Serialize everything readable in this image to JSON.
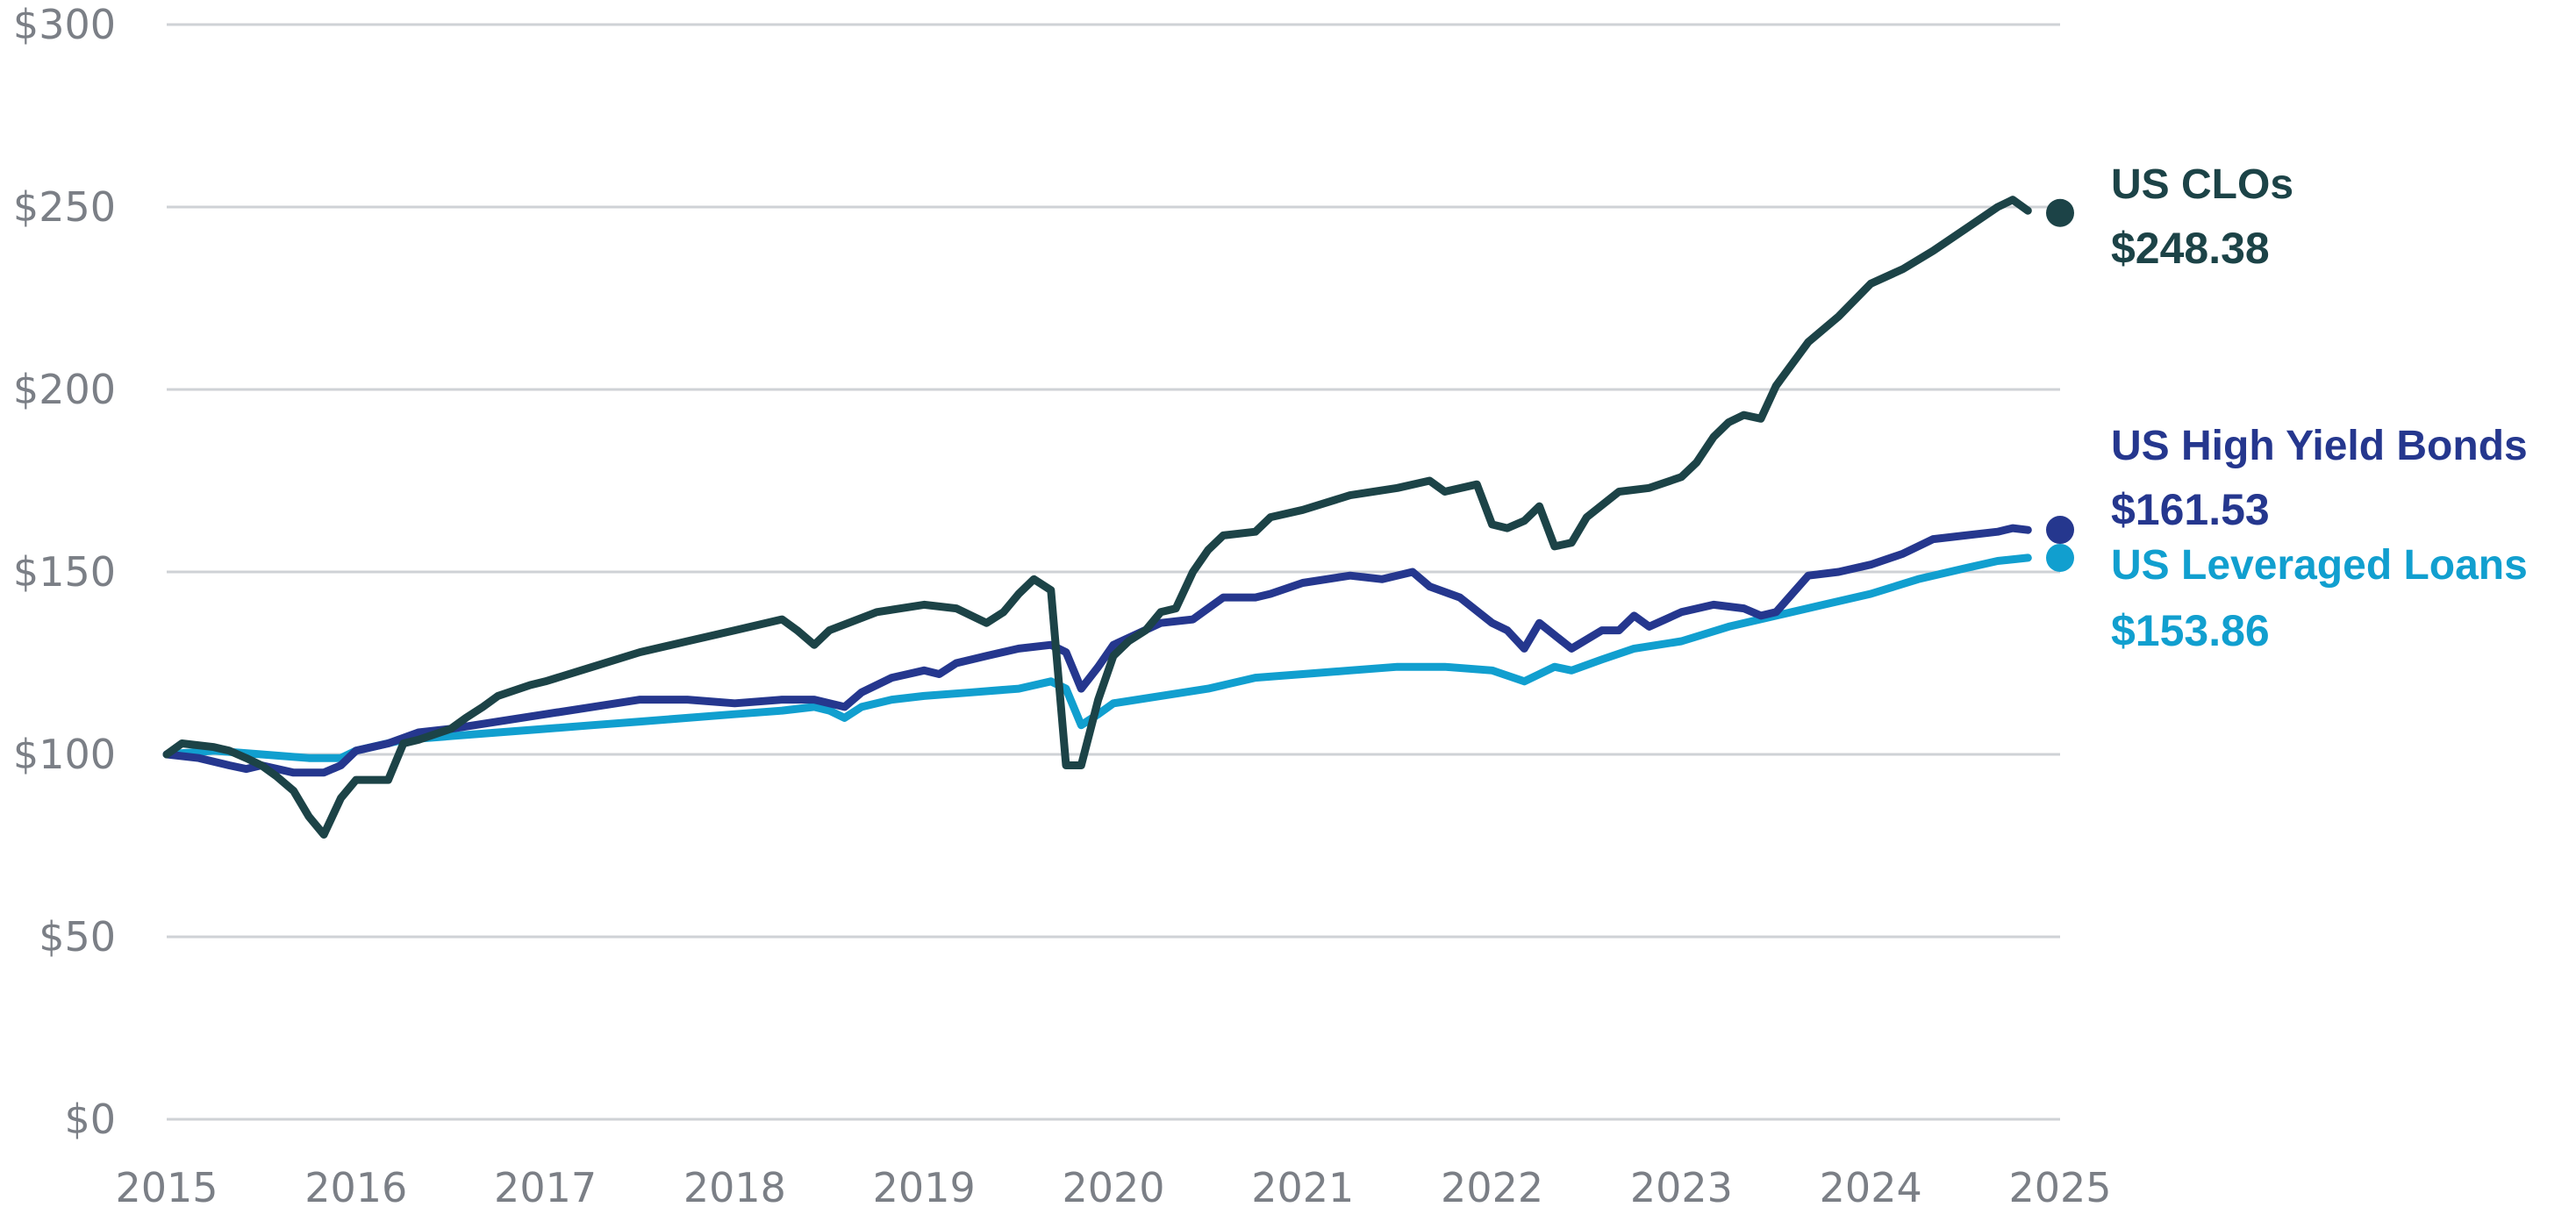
{
  "colors": {
    "clo": "#1c4347",
    "hy": "#25378e",
    "loans": "#119fcf",
    "grid": "#cfd2d6",
    "tick": "#7b7f86"
  },
  "chart_data": {
    "type": "line",
    "xlim": [
      2015,
      2025
    ],
    "ylim": [
      0,
      300
    ],
    "grid": true,
    "x_ticks": [
      "2015",
      "2016",
      "2017",
      "2018",
      "2019",
      "2020",
      "2021",
      "2022",
      "2023",
      "2024",
      "2025"
    ],
    "y_ticks": [
      "$0",
      "$50",
      "$100",
      "$150",
      "$200",
      "$250",
      "$300"
    ],
    "y_tick_values": [
      0,
      50,
      100,
      150,
      200,
      250,
      300
    ],
    "series": [
      {
        "name": "US CLOs",
        "value_label": "$248.38",
        "final_value": 248.38,
        "color_key": "clo",
        "points": [
          [
            2015.0,
            100
          ],
          [
            2015.08,
            103
          ],
          [
            2015.25,
            102
          ],
          [
            2015.33,
            101
          ],
          [
            2015.42,
            99
          ],
          [
            2015.5,
            97
          ],
          [
            2015.58,
            94
          ],
          [
            2015.67,
            90
          ],
          [
            2015.75,
            83
          ],
          [
            2015.83,
            78
          ],
          [
            2015.92,
            88
          ],
          [
            2016.0,
            93
          ],
          [
            2016.08,
            93
          ],
          [
            2016.17,
            93
          ],
          [
            2016.25,
            103
          ],
          [
            2016.33,
            104
          ],
          [
            2016.5,
            107
          ],
          [
            2016.58,
            110
          ],
          [
            2016.67,
            113
          ],
          [
            2016.75,
            116
          ],
          [
            2016.92,
            119
          ],
          [
            2017.0,
            120
          ],
          [
            2017.25,
            124
          ],
          [
            2017.5,
            128
          ],
          [
            2017.75,
            131
          ],
          [
            2018.0,
            134
          ],
          [
            2018.25,
            137
          ],
          [
            2018.33,
            134
          ],
          [
            2018.42,
            130
          ],
          [
            2018.5,
            134
          ],
          [
            2018.75,
            139
          ],
          [
            2019.0,
            141
          ],
          [
            2019.17,
            140
          ],
          [
            2019.33,
            136
          ],
          [
            2019.42,
            139
          ],
          [
            2019.5,
            144
          ],
          [
            2019.58,
            148
          ],
          [
            2019.67,
            145
          ],
          [
            2019.75,
            97
          ],
          [
            2019.83,
            97
          ],
          [
            2019.92,
            115
          ],
          [
            2020.0,
            127
          ],
          [
            2020.08,
            131
          ],
          [
            2020.17,
            134
          ],
          [
            2020.25,
            139
          ],
          [
            2020.33,
            140
          ],
          [
            2020.42,
            150
          ],
          [
            2020.5,
            156
          ],
          [
            2020.58,
            160
          ],
          [
            2020.75,
            161
          ],
          [
            2020.83,
            165
          ],
          [
            2021.0,
            167
          ],
          [
            2021.25,
            171
          ],
          [
            2021.5,
            173
          ],
          [
            2021.67,
            175
          ],
          [
            2021.75,
            172
          ],
          [
            2021.92,
            174
          ],
          [
            2022.0,
            163
          ],
          [
            2022.08,
            162
          ],
          [
            2022.17,
            164
          ],
          [
            2022.25,
            168
          ],
          [
            2022.33,
            157
          ],
          [
            2022.42,
            158
          ],
          [
            2022.5,
            165
          ],
          [
            2022.67,
            172
          ],
          [
            2022.83,
            173
          ],
          [
            2023.0,
            176
          ],
          [
            2023.08,
            180
          ],
          [
            2023.17,
            187
          ],
          [
            2023.25,
            191
          ],
          [
            2023.33,
            193
          ],
          [
            2023.42,
            192
          ],
          [
            2023.5,
            201
          ],
          [
            2023.67,
            213
          ],
          [
            2023.83,
            220
          ],
          [
            2024.0,
            229
          ],
          [
            2024.17,
            233
          ],
          [
            2024.33,
            238
          ],
          [
            2024.5,
            244
          ],
          [
            2024.67,
            250
          ],
          [
            2024.75,
            252
          ],
          [
            2024.83,
            249
          ]
        ]
      },
      {
        "name": "US High Yield Bonds",
        "value_label": "$161.53",
        "final_value": 161.53,
        "color_key": "hy",
        "points": [
          [
            2015.0,
            100
          ],
          [
            2015.17,
            99
          ],
          [
            2015.33,
            97
          ],
          [
            2015.42,
            96
          ],
          [
            2015.5,
            97
          ],
          [
            2015.67,
            95
          ],
          [
            2015.83,
            95
          ],
          [
            2015.92,
            97
          ],
          [
            2016.0,
            101
          ],
          [
            2016.17,
            103
          ],
          [
            2016.33,
            106
          ],
          [
            2016.5,
            107
          ],
          [
            2016.75,
            109
          ],
          [
            2017.0,
            111
          ],
          [
            2017.25,
            113
          ],
          [
            2017.5,
            115
          ],
          [
            2017.75,
            115
          ],
          [
            2018.0,
            114
          ],
          [
            2018.25,
            115
          ],
          [
            2018.42,
            115
          ],
          [
            2018.5,
            114
          ],
          [
            2018.58,
            113
          ],
          [
            2018.67,
            117
          ],
          [
            2018.83,
            121
          ],
          [
            2019.0,
            123
          ],
          [
            2019.08,
            122
          ],
          [
            2019.17,
            125
          ],
          [
            2019.33,
            127
          ],
          [
            2019.5,
            129
          ],
          [
            2019.67,
            130
          ],
          [
            2019.75,
            128
          ],
          [
            2019.83,
            118
          ],
          [
            2019.92,
            124
          ],
          [
            2020.0,
            130
          ],
          [
            2020.25,
            136
          ],
          [
            2020.42,
            137
          ],
          [
            2020.58,
            143
          ],
          [
            2020.75,
            143
          ],
          [
            2020.83,
            144
          ],
          [
            2021.0,
            147
          ],
          [
            2021.25,
            149
          ],
          [
            2021.42,
            148
          ],
          [
            2021.58,
            150
          ],
          [
            2021.67,
            146
          ],
          [
            2021.83,
            143
          ],
          [
            2022.0,
            136
          ],
          [
            2022.08,
            134
          ],
          [
            2022.17,
            129
          ],
          [
            2022.25,
            136
          ],
          [
            2022.42,
            129
          ],
          [
            2022.58,
            134
          ],
          [
            2022.67,
            134
          ],
          [
            2022.75,
            138
          ],
          [
            2022.83,
            135
          ],
          [
            2023.0,
            139
          ],
          [
            2023.17,
            141
          ],
          [
            2023.33,
            140
          ],
          [
            2023.42,
            138
          ],
          [
            2023.5,
            139
          ],
          [
            2023.67,
            149
          ],
          [
            2023.83,
            150
          ],
          [
            2024.0,
            152
          ],
          [
            2024.17,
            155
          ],
          [
            2024.33,
            159
          ],
          [
            2024.5,
            160
          ],
          [
            2024.67,
            161
          ],
          [
            2024.75,
            162
          ],
          [
            2024.83,
            161.5
          ]
        ]
      },
      {
        "name": "US Leveraged Loans",
        "value_label": "$153.86",
        "final_value": 153.86,
        "color_key": "loans",
        "points": [
          [
            2015.0,
            100
          ],
          [
            2015.25,
            101
          ],
          [
            2015.5,
            100
          ],
          [
            2015.75,
            99
          ],
          [
            2015.92,
            99
          ],
          [
            2016.0,
            101
          ],
          [
            2016.25,
            104
          ],
          [
            2016.5,
            105
          ],
          [
            2016.75,
            106
          ],
          [
            2017.0,
            107
          ],
          [
            2017.25,
            108
          ],
          [
            2017.5,
            109
          ],
          [
            2017.75,
            110
          ],
          [
            2018.0,
            111
          ],
          [
            2018.25,
            112
          ],
          [
            2018.42,
            113
          ],
          [
            2018.5,
            112
          ],
          [
            2018.58,
            110
          ],
          [
            2018.67,
            113
          ],
          [
            2018.83,
            115
          ],
          [
            2019.0,
            116
          ],
          [
            2019.25,
            117
          ],
          [
            2019.5,
            118
          ],
          [
            2019.67,
            120
          ],
          [
            2019.75,
            118
          ],
          [
            2019.83,
            108
          ],
          [
            2019.92,
            111
          ],
          [
            2020.0,
            114
          ],
          [
            2020.25,
            116
          ],
          [
            2020.5,
            118
          ],
          [
            2020.75,
            121
          ],
          [
            2021.0,
            122
          ],
          [
            2021.25,
            123
          ],
          [
            2021.5,
            124
          ],
          [
            2021.75,
            124
          ],
          [
            2022.0,
            123
          ],
          [
            2022.17,
            120
          ],
          [
            2022.33,
            124
          ],
          [
            2022.42,
            123
          ],
          [
            2022.58,
            126
          ],
          [
            2022.75,
            129
          ],
          [
            2023.0,
            131
          ],
          [
            2023.25,
            135
          ],
          [
            2023.5,
            138
          ],
          [
            2023.75,
            141
          ],
          [
            2024.0,
            144
          ],
          [
            2024.25,
            148
          ],
          [
            2024.5,
            151
          ],
          [
            2024.67,
            153
          ],
          [
            2024.83,
            153.86
          ]
        ]
      }
    ]
  }
}
